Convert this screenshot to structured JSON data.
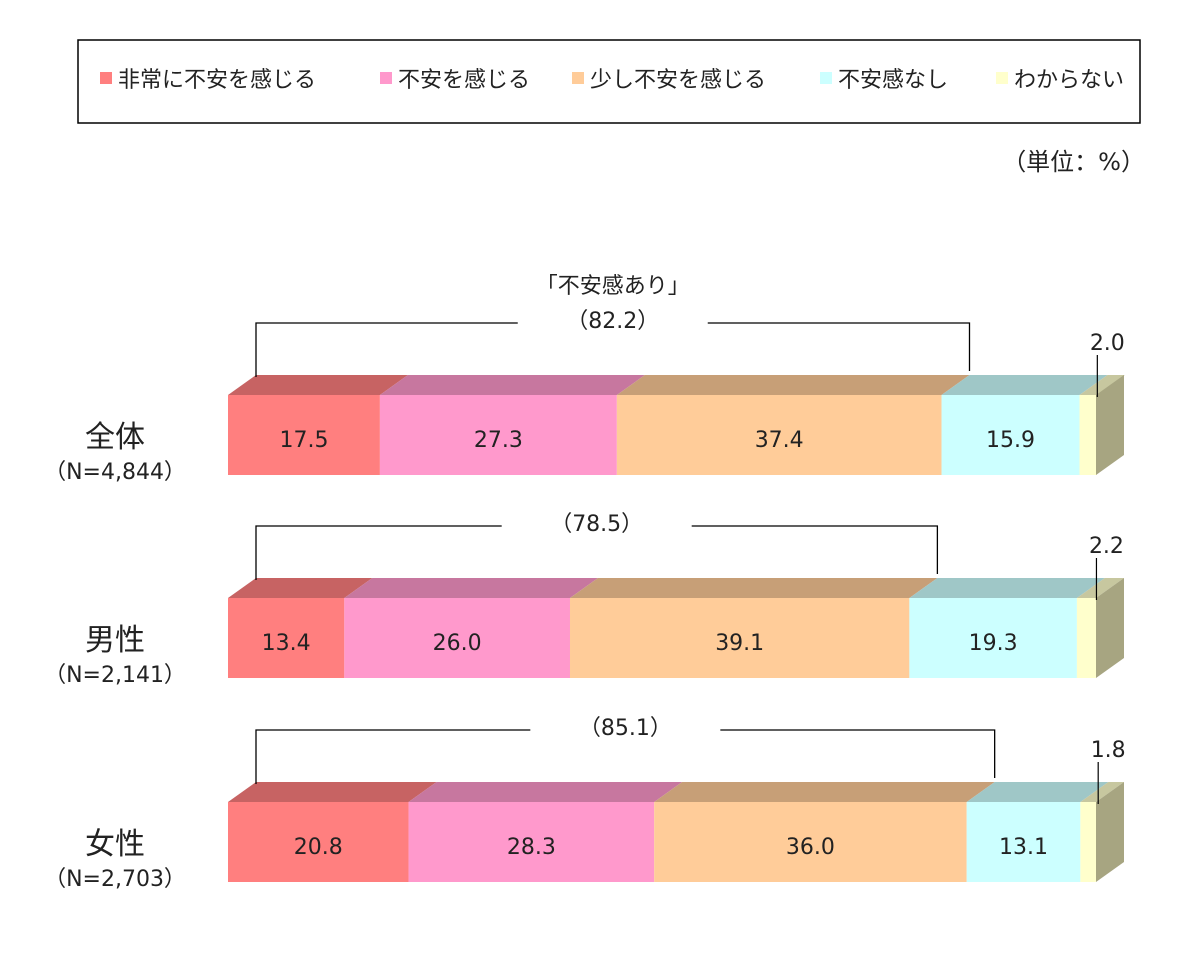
{
  "chart_data": {
    "type": "bar",
    "orientation": "horizontal",
    "stacked": true,
    "style": "3d",
    "unit_note": "（単位：%）",
    "categories": [
      {
        "name": "全体",
        "n_label": "（N=4,844）"
      },
      {
        "name": "男性",
        "n_label": "（N=2,141）"
      },
      {
        "name": "女性",
        "n_label": "（N=2,703）"
      }
    ],
    "series": [
      {
        "name": "非常に不安を感じる",
        "color": "#ff7f7f",
        "values": [
          17.5,
          13.4,
          20.8
        ]
      },
      {
        "name": "不安を感じる",
        "color": "#ff99cc",
        "values": [
          27.3,
          26.0,
          28.3
        ]
      },
      {
        "name": "少し不安を感じる",
        "color": "#ffcc99",
        "values": [
          37.4,
          39.1,
          36.0
        ]
      },
      {
        "name": "不安感なし",
        "color": "#ccffff",
        "values": [
          15.9,
          19.3,
          13.1
        ]
      },
      {
        "name": "わからない",
        "color": "#ffffcc",
        "values": [
          2.0,
          2.2,
          1.8
        ]
      }
    ],
    "value_labels": [
      [
        "17.5",
        "27.3",
        "37.4",
        "15.9",
        "2.0"
      ],
      [
        "13.4",
        "26.0",
        "39.1",
        "19.3",
        "2.2"
      ],
      [
        "20.8",
        "28.3",
        "36.0",
        "13.1",
        "1.8"
      ]
    ],
    "bracket": {
      "title": "「不安感あり」",
      "labels": [
        "（82.2）",
        "（78.5）",
        "（85.1）"
      ],
      "values": [
        82.2,
        78.5,
        85.1
      ]
    },
    "xlim": [
      0,
      100
    ],
    "legend": {
      "placement": "top",
      "box": true
    },
    "grid": false
  }
}
